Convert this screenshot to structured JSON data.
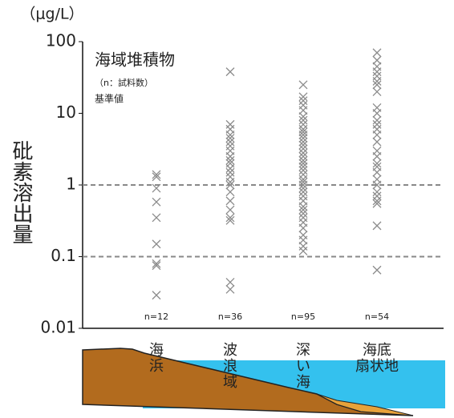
{
  "chart_data": {
    "type": "strip",
    "title": "海域堆積物",
    "note": "（n：試料数）",
    "y_label": "砒素溶出量",
    "unit": "（μg/L）",
    "reference_label": "基準値",
    "reference_label_color": "#e0333f",
    "reference_lines": [
      1,
      0.1
    ],
    "reference_line_color": "#888888",
    "marker_color": "#8c8c8c",
    "log_scale": true,
    "ylim": [
      0.01,
      100
    ],
    "yticks": [
      0.01,
      0.1,
      1,
      10,
      100
    ],
    "categories": [
      "海浜",
      "波浪域",
      "深い海",
      "海底扇状地"
    ],
    "n_labels": [
      "n=12",
      "n=36",
      "n=95",
      "n=54"
    ],
    "groups": [
      {
        "values": [
          1.4,
          1.3,
          0.9,
          0.58,
          0.35,
          0.15,
          0.08,
          0.075,
          0.029
        ]
      },
      {
        "values": [
          38,
          7,
          6,
          5,
          4.5,
          4,
          3.5,
          3,
          2.5,
          2.2,
          2,
          1.7,
          1.5,
          1.3,
          1.1,
          1,
          0.8,
          0.6,
          0.45,
          0.35,
          0.32,
          0.044,
          0.035
        ]
      },
      {
        "values": [
          25,
          17,
          15,
          13,
          11,
          9,
          8,
          7,
          6,
          5.5,
          5,
          4.5,
          4,
          3.6,
          3.2,
          2.8,
          2.5,
          2.2,
          2,
          1.8,
          1.6,
          1.4,
          1.2,
          1.1,
          1,
          0.9,
          0.8,
          0.7,
          0.6,
          0.5,
          0.45,
          0.4,
          0.35,
          0.3,
          0.25,
          0.2,
          0.17,
          0.14,
          0.12
        ]
      },
      {
        "values": [
          70,
          55,
          45,
          38,
          33,
          28,
          25,
          20,
          12,
          10,
          8,
          7,
          6,
          5,
          4,
          3,
          2.5,
          2,
          1.8,
          1.5,
          1.2,
          1,
          0.8,
          0.7,
          0.6,
          0.55,
          0.27,
          0.065
        ]
      }
    ]
  }
}
